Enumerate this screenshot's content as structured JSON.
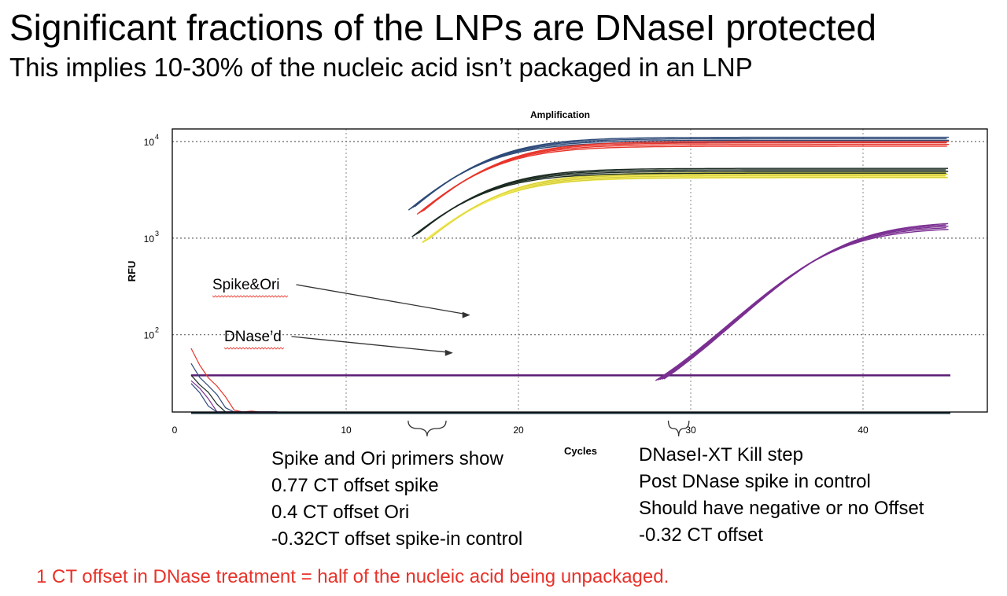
{
  "slide": {
    "title": "Significant fractions of the LNPs are DNaseI protected",
    "subtitle": "This implies 10-30% of the nucleic acid isn’t packaged in an LNP"
  },
  "chart_data": {
    "type": "line",
    "title": "Amplification",
    "xlabel": "Cycles",
    "ylabel": "RFU",
    "x_ticks": [
      0,
      10,
      20,
      30,
      40
    ],
    "y_ticks": [
      {
        "base": "10",
        "exp": "2"
      },
      {
        "base": "10",
        "exp": "3"
      },
      {
        "base": "10",
        "exp": "4"
      }
    ],
    "xlim": [
      0,
      47
    ],
    "ylim_log10": [
      1.2,
      4.13
    ],
    "yscale": "log",
    "grid": true,
    "thresholds": [
      {
        "y": 38,
        "color": "#5b1d72"
      },
      {
        "y": 15.5,
        "color": "#17313a"
      }
    ],
    "series_groups": [
      {
        "count": 4,
        "color": "#2d4a78",
        "curve": {
          "start": 13.8,
          "midpoint": 17.2,
          "plateau": 10500
        }
      },
      {
        "count": 4,
        "color": "#e8342a",
        "curve": {
          "start": 14.3,
          "midpoint": 17.7,
          "plateau": 9500
        }
      },
      {
        "count": 4,
        "color": "#f2ea55",
        "curve": {
          "start": 14.6,
          "midpoint": 17.8,
          "plateau": 4500
        }
      },
      {
        "count": 4,
        "color": "#1a2a20",
        "curve": {
          "start": 14.0,
          "midpoint": 17.1,
          "plateau": 5000
        }
      },
      {
        "count": 5,
        "color": "#7b2f92",
        "curve": {
          "start": 28.2,
          "midpoint": 38.0,
          "plateau": 1400
        }
      }
    ],
    "annotations": [
      {
        "label": "Spike&Ori",
        "target": {
          "x": 17.2,
          "y": 160
        }
      },
      {
        "label": "DNase’d",
        "target": {
          "x": 16.2,
          "y": 65
        }
      }
    ],
    "braces": [
      {
        "x_from": 13.6,
        "x_to": 15.8
      },
      {
        "x_from": 28.7,
        "x_to": 29.9
      }
    ]
  },
  "notes": {
    "left": [
      "Spike and Ori primers show",
      "0.77 CT offset spike",
      "0.4   CT offset Ori",
      "-0.32CT offset spike-in control"
    ],
    "right": [
      "DNaseI-XT Kill step",
      "Post DNase spike in control",
      "Should have negative or no Offset",
      "-0.32 CT offset"
    ]
  },
  "footer": "1 CT offset in DNase treatment = half of the nucleic acid being unpackaged."
}
